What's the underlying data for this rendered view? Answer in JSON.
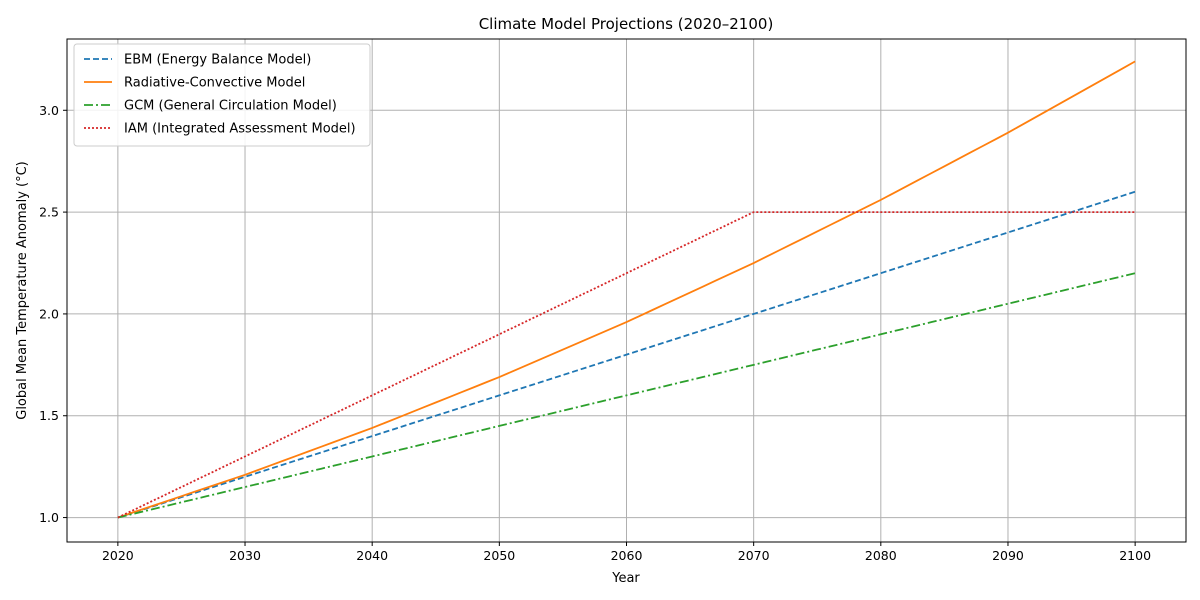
{
  "chart_data": {
    "type": "line",
    "title": "Climate Model Projections (2020–2100)",
    "xlabel": "Year",
    "ylabel": "Global Mean Temperature Anomaly (°C)",
    "xlim": [
      2016,
      2104
    ],
    "ylim": [
      0.88,
      3.35
    ],
    "xticks": [
      2020,
      2030,
      2040,
      2050,
      2060,
      2070,
      2080,
      2090,
      2100
    ],
    "yticks": [
      1.0,
      1.5,
      2.0,
      2.5,
      3.0
    ],
    "ytick_labels": [
      "1.0",
      "1.5",
      "2.0",
      "2.5",
      "3.0"
    ],
    "grid": true,
    "legend_position": "top-left",
    "x": [
      2020,
      2030,
      2040,
      2050,
      2060,
      2070,
      2080,
      2090,
      2100
    ],
    "series": [
      {
        "name": "EBM (Energy Balance Model)",
        "color": "#1f77b4",
        "dash": "dashed",
        "values": [
          1.0,
          1.2,
          1.4,
          1.6,
          1.8,
          2.0,
          2.2,
          2.4,
          2.6
        ]
      },
      {
        "name": "Radiative-Convective Model",
        "color": "#ff7f0e",
        "dash": "solid",
        "values": [
          1.0,
          1.21,
          1.44,
          1.69,
          1.96,
          2.25,
          2.56,
          2.89,
          3.24
        ]
      },
      {
        "name": "GCM (General Circulation Model)",
        "color": "#2ca02c",
        "dash": "dashdot",
        "values": [
          1.0,
          1.15,
          1.3,
          1.45,
          1.6,
          1.75,
          1.9,
          2.05,
          2.2
        ]
      },
      {
        "name": "IAM (Integrated Assessment Model)",
        "color": "#d62728",
        "dash": "dotted",
        "values": [
          1.0,
          1.3,
          1.6,
          1.9,
          2.2,
          2.5,
          2.5,
          2.5,
          2.5
        ]
      }
    ]
  }
}
